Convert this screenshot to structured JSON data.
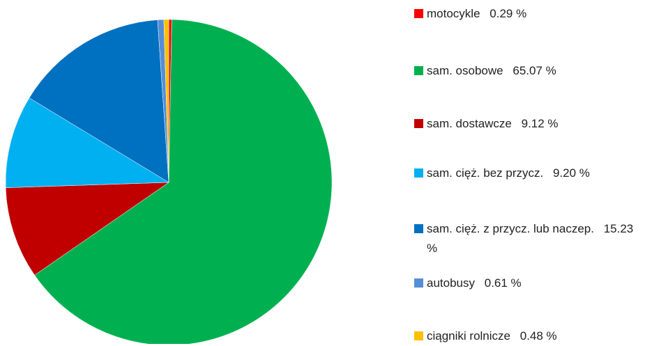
{
  "chart_data": {
    "type": "pie",
    "categories": [
      "motocykle",
      "sam. osobowe",
      "sam. dostawcze",
      "sam. cięż. bez przycz.",
      "sam. cięż. z przycz. lub naczep.",
      "autobusy",
      "ciągniki rolnicze"
    ],
    "values": [
      0.29,
      65.07,
      9.12,
      9.2,
      15.23,
      0.61,
      0.48
    ],
    "value_labels": [
      "0.29 %",
      "65.07 %",
      "9.12 %",
      "9.20 %",
      "15.23 %",
      "0.61 %",
      "0.48 %"
    ],
    "colors": [
      "#ff0000",
      "#00b050",
      "#c00000",
      "#00b0f0",
      "#0070c0",
      "#558ed5",
      "#ffc000"
    ]
  }
}
